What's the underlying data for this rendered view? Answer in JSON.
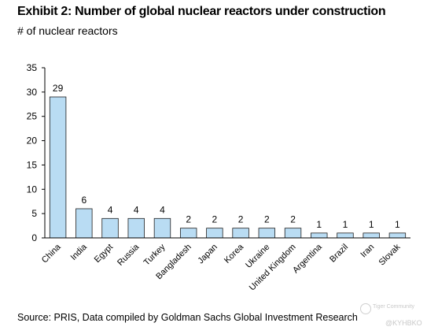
{
  "header": {
    "title": "Exhibit 2: Number of global nuclear reactors under construction",
    "subtitle": "# of nuclear reactors"
  },
  "footer": {
    "source": "Source: PRIS, Data compiled by Goldman Sachs Global Investment Research"
  },
  "watermark": {
    "name": "Tiger Community",
    "handle": "@KYHBKO"
  },
  "colors": {
    "bar_fill": "#b9dcf3",
    "bar_stroke": "#1f1f1f",
    "axis": "#000000"
  },
  "chart_data": {
    "type": "bar",
    "title": "Exhibit 2: Number of global nuclear reactors under construction",
    "ylabel": "# of nuclear reactors",
    "xlabel": "",
    "categories": [
      "China",
      "India",
      "Egypt",
      "Russia",
      "Turkey",
      "Bangladesh",
      "Japan",
      "Korea",
      "Ukraine",
      "United Kingdom",
      "Argentina",
      "Brazil",
      "Iran",
      "Slovak"
    ],
    "values": [
      29,
      6,
      4,
      4,
      4,
      2,
      2,
      2,
      2,
      2,
      1,
      1,
      1,
      1
    ],
    "ylim": [
      0,
      35
    ],
    "yticks": [
      0,
      5,
      10,
      15,
      20,
      25,
      30,
      35
    ],
    "grid": false,
    "legend": "none",
    "data_labels": true
  }
}
